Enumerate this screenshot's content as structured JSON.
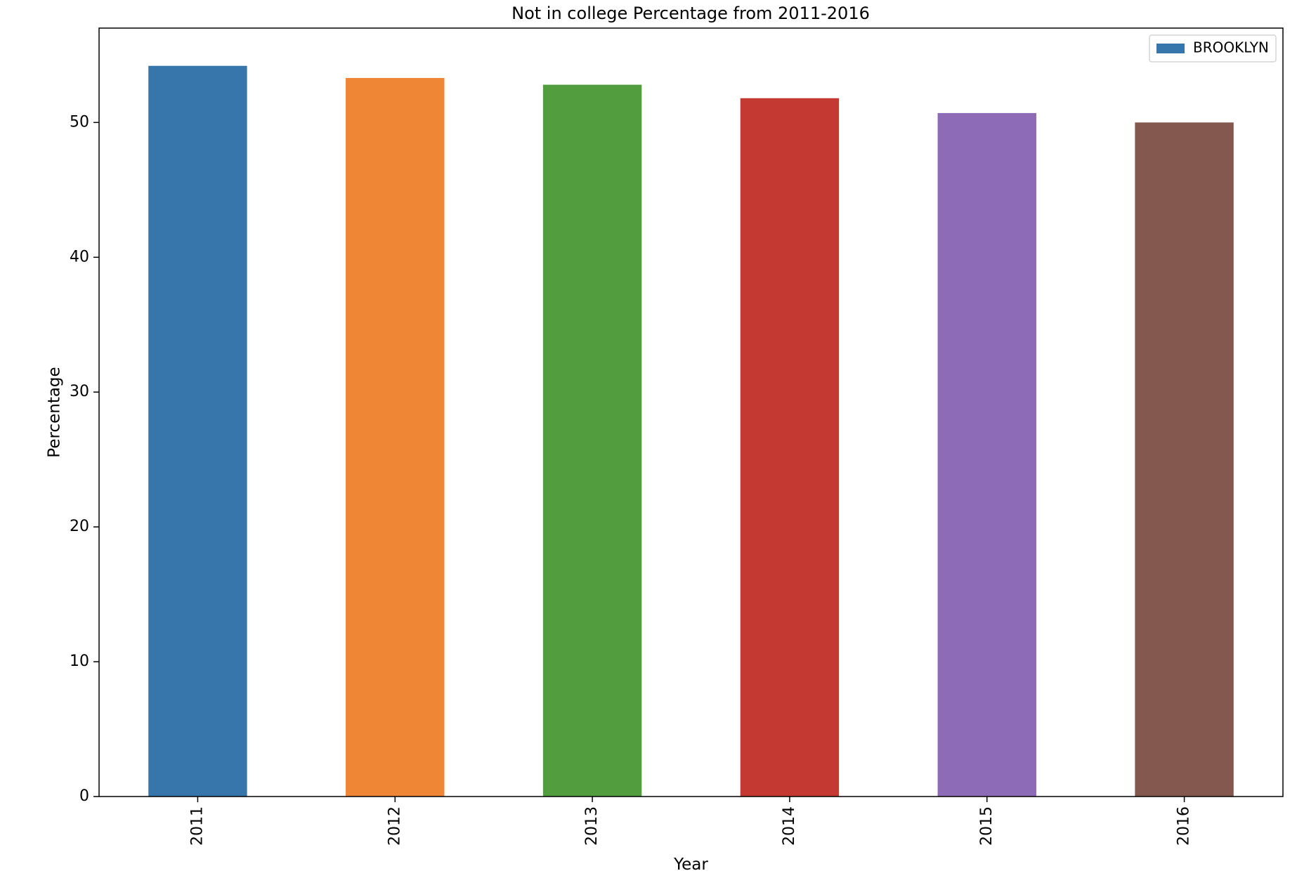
{
  "chart_data": {
    "type": "bar",
    "title": "Not in college Percentage from 2011-2016",
    "xlabel": "Year",
    "ylabel": "Percentage",
    "categories": [
      "2011",
      "2012",
      "2013",
      "2014",
      "2015",
      "2016"
    ],
    "series": [
      {
        "name": "BROOKLYN",
        "values": [
          54.2,
          53.3,
          52.8,
          51.8,
          50.7,
          50.0
        ]
      }
    ],
    "bar_colors": [
      "#3776ab",
      "#ef8636",
      "#529e3f",
      "#c43a33",
      "#8d6bb7",
      "#84584e"
    ],
    "ylim": [
      0,
      57
    ],
    "yticks": [
      0,
      10,
      20,
      30,
      40,
      50
    ],
    "ytick_labels": [
      "0",
      "10",
      "20",
      "30",
      "40",
      "50"
    ],
    "x_tick_rotation": "vertical",
    "grid": false,
    "legend": {
      "placement": "top-right",
      "label": "BROOKLYN",
      "swatch_color": "#3776ab"
    }
  }
}
